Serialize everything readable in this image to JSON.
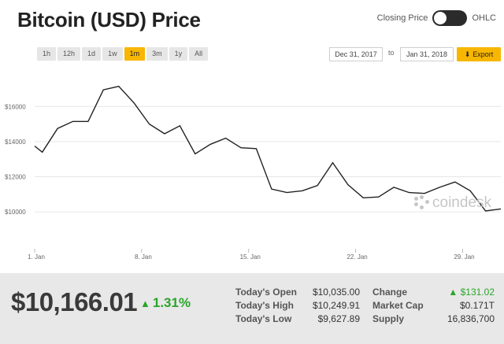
{
  "header": {
    "title": "Bitcoin (USD) Price"
  },
  "toggle": {
    "left_label": "Closing Price",
    "right_label": "OHLC"
  },
  "ranges": [
    {
      "label": "1h",
      "active": false
    },
    {
      "label": "12h",
      "active": false
    },
    {
      "label": "1d",
      "active": false
    },
    {
      "label": "1w",
      "active": false
    },
    {
      "label": "1m",
      "active": true
    },
    {
      "label": "3m",
      "active": false
    },
    {
      "label": "1y",
      "active": false
    },
    {
      "label": "All",
      "active": false
    }
  ],
  "date_range": {
    "from": "Dec 31, 2017",
    "separator": "to",
    "to": "Jan 31, 2018"
  },
  "export": {
    "label": "Export",
    "icon": "download-arrow-icon"
  },
  "watermark": {
    "text": "coindesk"
  },
  "chart_data": {
    "type": "line",
    "title": "",
    "xlabel": "",
    "ylabel": "",
    "x_ticks": [
      {
        "day": 1,
        "label": "1. Jan"
      },
      {
        "day": 8,
        "label": "8. Jan"
      },
      {
        "day": 15,
        "label": "15. Jan"
      },
      {
        "day": 22,
        "label": "22. Jan"
      },
      {
        "day": 29,
        "label": "29. Jan"
      }
    ],
    "y_ticks": [
      {
        "value": 10000,
        "label": "$10000"
      },
      {
        "value": 12000,
        "label": "$12000"
      },
      {
        "value": 14000,
        "label": "$14000"
      },
      {
        "value": 16000,
        "label": "$16000"
      }
    ],
    "xlim": [
      1,
      31.5
    ],
    "ylim": [
      7900,
      18300
    ],
    "grid": true,
    "line_color": "#222222",
    "series": [
      {
        "x": [
          1,
          1.5,
          2.5,
          3.5,
          4.5,
          5.5,
          6.5,
          7.5,
          8.5,
          9.5,
          10.5,
          11.5,
          12.5,
          13.5,
          14.5,
          15.5,
          16.5,
          17.5,
          18.5,
          19.5,
          20.5,
          21.5,
          22.5,
          23.5,
          24.5,
          25.5,
          26.5,
          27.5,
          28.5,
          29.5,
          30.5,
          31.5
        ],
        "y": [
          13750,
          13400,
          14750,
          15150,
          15150,
          16950,
          17150,
          16200,
          15000,
          14450,
          14900,
          13300,
          13850,
          14200,
          13650,
          13600,
          11300,
          11100,
          11200,
          11500,
          12800,
          11550,
          10800,
          10850,
          11400,
          11100,
          11050,
          11400,
          11700,
          11200,
          10050,
          10170
        ]
      }
    ]
  },
  "summary": {
    "price": "$10,166.01",
    "change_pct": "1.31%",
    "open_label": "Today's Open",
    "open_value": "$10,035.00",
    "high_label": "Today's High",
    "high_value": "$10,249.91",
    "low_label": "Today's Low",
    "low_value": "$9,627.89",
    "change_label": "Change",
    "change_value": "$131.02",
    "mcap_label": "Market Cap",
    "mcap_value": "$0.171T",
    "supply_label": "Supply",
    "supply_value": "16,836,700",
    "up_color": "#2aa52a"
  }
}
